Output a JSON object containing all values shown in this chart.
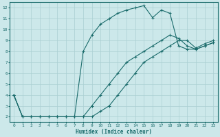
{
  "xlabel": "Humidex (Indice chaleur)",
  "bg_color": "#cce8ea",
  "grid_color": "#aacfd2",
  "line_color": "#1a6b6b",
  "xlim": [
    -0.5,
    23.5
  ],
  "ylim": [
    1.5,
    12.5
  ],
  "xticks": [
    0,
    1,
    2,
    3,
    4,
    5,
    6,
    7,
    8,
    9,
    10,
    11,
    12,
    13,
    14,
    15,
    16,
    17,
    18,
    19,
    20,
    21,
    22,
    23
  ],
  "yticks": [
    2,
    3,
    4,
    5,
    6,
    7,
    8,
    9,
    10,
    11,
    12
  ],
  "line1_x": [
    0,
    1,
    2,
    3,
    4,
    5,
    6,
    7,
    8,
    9,
    10,
    11,
    12,
    13,
    14,
    15,
    16,
    17,
    18,
    19,
    20,
    21,
    22,
    23
  ],
  "line1_y": [
    4,
    2,
    2,
    2,
    2,
    2,
    2,
    2,
    8,
    9.5,
    10.5,
    11,
    11.5,
    11.8,
    12.0,
    12.2,
    11.1,
    11.8,
    11.5,
    8.5,
    8.2,
    8.2,
    8.5,
    8.8
  ],
  "line2_x": [
    0,
    1,
    2,
    3,
    4,
    5,
    6,
    7,
    8,
    9,
    10,
    11,
    12,
    13,
    14,
    15,
    16,
    17,
    18,
    19,
    20,
    21,
    22,
    23
  ],
  "line2_y": [
    4,
    2,
    2,
    2,
    2,
    2,
    2,
    2,
    2,
    3,
    4,
    5,
    6,
    7,
    7.5,
    8,
    8.5,
    9,
    9.5,
    9.2,
    8.5,
    8.2,
    8.5,
    8.8
  ],
  "line3_x": [
    0,
    1,
    2,
    3,
    4,
    5,
    6,
    7,
    8,
    9,
    10,
    11,
    12,
    13,
    14,
    15,
    16,
    17,
    18,
    19,
    20,
    21,
    22,
    23
  ],
  "line3_y": [
    4,
    2,
    2,
    2,
    2,
    2,
    2,
    2,
    2,
    2,
    2.5,
    3,
    4,
    5,
    6,
    7,
    7.5,
    8,
    8.5,
    9,
    9,
    8.3,
    8.7,
    9.0
  ]
}
